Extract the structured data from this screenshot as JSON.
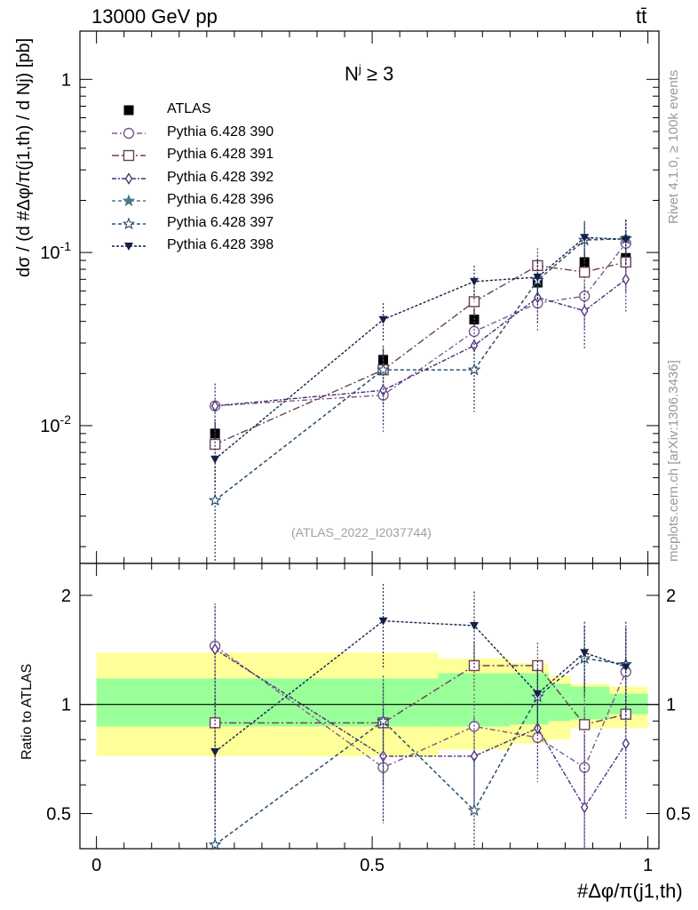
{
  "header": {
    "energy_label": "13000 GeV pp",
    "process_label": "tt̄"
  },
  "side_text": {
    "rivet": "Rivet 4.1.0, ≥ 100k events",
    "mcplots": "mcplots.cern.ch [arXiv:1306.3436]"
  },
  "annotation": {
    "selection": "N^j ≥ 3",
    "selection_main": "N",
    "selection_sup": "j",
    "selection_rest": " ≥ 3",
    "analysis_ref": "(ATLAS_2022_I2037744)"
  },
  "axis_labels": {
    "y_main": "dσ / (d #Δφ/π(j1,th) / d Nj) [pb]",
    "y_ratio": "Ratio to ATLAS",
    "x": "#Δφ/π(j1,th)"
  },
  "colors": {
    "atlas": "#000000",
    "p390": "#7b5a8c",
    "p391": "#6b4055",
    "p392": "#4a2d7a",
    "p396": "#4a7a8a",
    "p397": "#2d4d6d",
    "p398": "#15204a",
    "band_inner": "#99ff99",
    "band_outer": "#ffff99"
  },
  "chart_data": [
    {
      "type": "scatter",
      "panel": "main",
      "title": "N^j ≥ 3",
      "xlabel": "#Δφ/π(j1,th)",
      "ylabel": "dσ / (d #Δφ/π(j1,th) / d Nj) [pb]",
      "yscale": "log",
      "xlim": [
        -0.03,
        1.02
      ],
      "ylim": [
        0.0016,
        1.9
      ],
      "y_ticks": [
        0.01,
        0.1,
        1
      ],
      "y_tick_labels": [
        "10^-2",
        "10^-1",
        "1"
      ],
      "x": [
        0.215,
        0.52,
        0.685,
        0.8,
        0.885,
        0.96
      ],
      "series": [
        {
          "name": "ATLAS",
          "marker": "square-filled",
          "values": [
            0.009,
            0.024,
            0.041,
            0.067,
            0.088,
            0.093
          ],
          "errors": [
            0.0015,
            0.004,
            0.006,
            0.009,
            0.012,
            0.013
          ]
        },
        {
          "name": "Pythia 6.428 390",
          "marker": "circle-open",
          "values": [
            0.013,
            0.015,
            0.035,
            0.051,
            0.056,
            0.113
          ],
          "errors": [
            0.0045,
            0.006,
            0.009,
            0.016,
            0.02,
            0.04
          ]
        },
        {
          "name": "Pythia 6.428 391",
          "marker": "square-open",
          "values": [
            0.0078,
            0.021,
            0.052,
            0.084,
            0.077,
            0.088
          ],
          "errors": [
            0.003,
            0.007,
            0.012,
            0.022,
            0.025,
            0.03
          ]
        },
        {
          "name": "Pythia 6.428 392",
          "marker": "diamond-open",
          "values": [
            0.013,
            0.016,
            0.029,
            0.055,
            0.046,
            0.07
          ],
          "errors": [
            0.0045,
            0.006,
            0.009,
            0.016,
            0.018,
            0.025
          ]
        },
        {
          "name": "Pythia 6.428 396",
          "marker": "star-filled",
          "values": [
            0.0037,
            0.021,
            0.021,
            0.069,
            0.118,
            0.12
          ],
          "errors": [
            0.0021,
            0.008,
            0.009,
            0.02,
            0.03,
            0.035
          ]
        },
        {
          "name": "Pythia 6.428 397",
          "marker": "star-open",
          "values": [
            0.0037,
            0.021,
            0.021,
            0.069,
            0.118,
            0.12
          ],
          "errors": [
            0.0021,
            0.008,
            0.009,
            0.02,
            0.03,
            0.035
          ]
        },
        {
          "name": "Pythia 6.428 398",
          "marker": "triangle-down-filled",
          "values": [
            0.0064,
            0.041,
            0.068,
            0.072,
            0.122,
            0.119
          ],
          "errors": [
            0.0025,
            0.01,
            0.016,
            0.02,
            0.03,
            0.035
          ]
        }
      ]
    },
    {
      "type": "scatter",
      "panel": "ratio",
      "ylabel": "Ratio to ATLAS",
      "yscale": "log",
      "ylim": [
        0.4,
        2.45
      ],
      "y_ticks": [
        0.5,
        1,
        2
      ],
      "y_tick_labels": [
        "0.5",
        "1",
        "2"
      ],
      "x_ticks": [
        0,
        0.5,
        1
      ],
      "x_tick_labels": [
        "0",
        "0.5",
        "1"
      ],
      "x": [
        0.215,
        0.52,
        0.685,
        0.8,
        0.885,
        0.96
      ],
      "bands": {
        "edges": [
          0.0,
          0.62,
          0.75,
          0.82,
          0.86,
          0.93,
          1.0
        ],
        "inner": [
          [
            0.87,
            1.18
          ],
          [
            0.87,
            1.22
          ],
          [
            0.88,
            1.22
          ],
          [
            0.9,
            1.14
          ],
          [
            0.91,
            1.12
          ],
          [
            0.94,
            1.07
          ]
        ],
        "outer": [
          [
            0.72,
            1.39
          ],
          [
            0.75,
            1.34
          ],
          [
            0.78,
            1.3
          ],
          [
            0.8,
            1.2
          ],
          [
            0.86,
            1.14
          ],
          [
            0.86,
            1.12
          ]
        ]
      },
      "series": [
        {
          "name": "Pythia 6.428 390",
          "marker": "circle-open",
          "values": [
            1.45,
            0.67,
            0.87,
            0.81,
            0.67,
            1.23
          ],
          "errors": [
            0.45,
            0.2,
            0.2,
            0.2,
            0.3,
            0.4
          ]
        },
        {
          "name": "Pythia 6.428 391",
          "marker": "square-open",
          "values": [
            0.89,
            0.89,
            1.28,
            1.28,
            0.88,
            0.94
          ],
          "errors": [
            0.35,
            0.25,
            0.2,
            0.2,
            0.3,
            0.35
          ]
        },
        {
          "name": "Pythia 6.428 392",
          "marker": "diamond-open",
          "values": [
            1.42,
            0.72,
            0.72,
            0.86,
            0.52,
            0.78
          ],
          "errors": [
            0.45,
            0.25,
            0.2,
            0.2,
            0.3,
            0.3
          ]
        },
        {
          "name": "Pythia 6.428 396",
          "marker": "star-filled",
          "values": [
            0.41,
            0.9,
            0.51,
            1.05,
            1.34,
            1.29
          ],
          "errors": [
            0.25,
            0.3,
            0.2,
            0.2,
            0.3,
            0.4
          ]
        },
        {
          "name": "Pythia 6.428 397",
          "marker": "star-open",
          "values": [
            0.41,
            0.9,
            0.51,
            1.05,
            1.34,
            1.29
          ],
          "errors": [
            0.25,
            0.3,
            0.2,
            0.2,
            0.3,
            0.4
          ]
        },
        {
          "name": "Pythia 6.428 398",
          "marker": "triangle-down-filled",
          "values": [
            0.74,
            1.7,
            1.65,
            1.07,
            1.39,
            1.27
          ],
          "errors": [
            0.3,
            0.45,
            0.4,
            0.25,
            0.3,
            0.35
          ]
        }
      ]
    }
  ]
}
